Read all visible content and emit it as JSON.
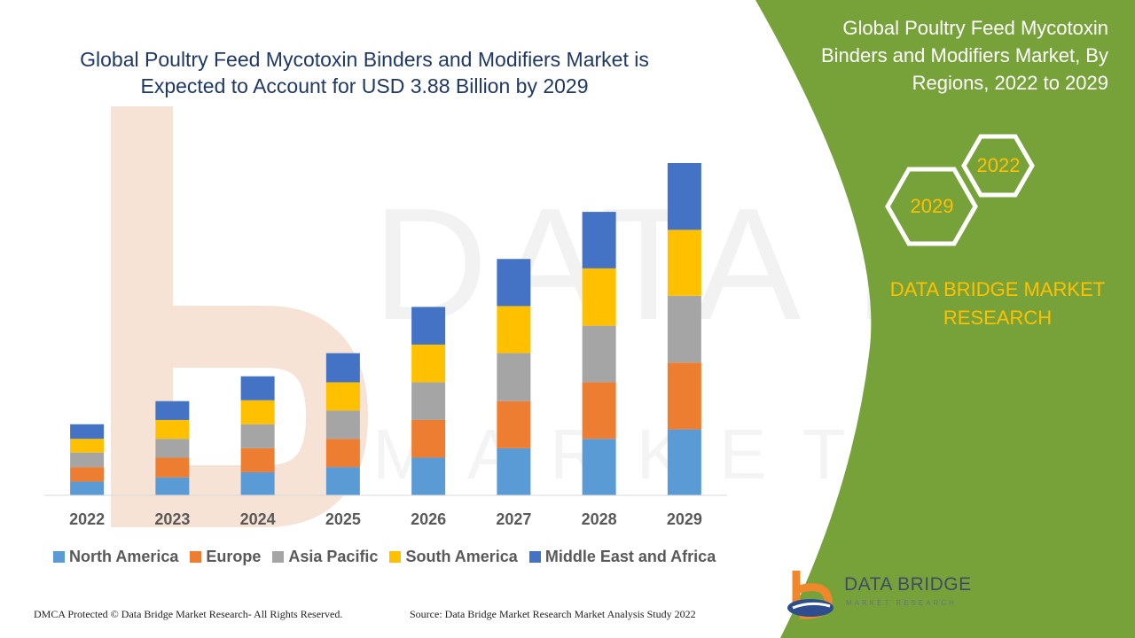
{
  "chart_data": {
    "type": "bar",
    "stacked": true,
    "title": "Global Poultry Feed Mycotoxin Binders and Modifiers Market is Expected to Account for USD 3.88 Billion by 2029",
    "categories": [
      "2022",
      "2023",
      "2024",
      "2025",
      "2026",
      "2027",
      "2028",
      "2029"
    ],
    "series": [
      {
        "name": "North America",
        "color": "#5b9bd5",
        "values": [
          0.16,
          0.21,
          0.27,
          0.33,
          0.44,
          0.55,
          0.66,
          0.77
        ]
      },
      {
        "name": "Europe",
        "color": "#ed7d31",
        "values": [
          0.17,
          0.23,
          0.28,
          0.33,
          0.44,
          0.55,
          0.66,
          0.78
        ]
      },
      {
        "name": "Asia Pacific",
        "color": "#a5a5a5",
        "values": [
          0.17,
          0.22,
          0.28,
          0.33,
          0.44,
          0.56,
          0.66,
          0.78
        ]
      },
      {
        "name": "South America",
        "color": "#ffc000",
        "values": [
          0.16,
          0.22,
          0.28,
          0.33,
          0.44,
          0.55,
          0.67,
          0.77
        ]
      },
      {
        "name": "Middle East and Africa",
        "color": "#4472c4",
        "values": [
          0.17,
          0.22,
          0.28,
          0.34,
          0.44,
          0.55,
          0.66,
          0.78
        ]
      }
    ],
    "ylim": [
      0,
      4.0
    ],
    "xlabel": "",
    "ylabel": "",
    "legend_position": "bottom",
    "grid": false
  },
  "side_panel": {
    "title": "Global Poultry Feed Mycotoxin Binders and Modifiers Market, By Regions, 2022 to 2029",
    "hex_year_a": "2022",
    "hex_year_b": "2029",
    "brand": "DATA BRIDGE MARKET RESEARCH",
    "accent_color": "#ffc000",
    "panel_color": "#77a23a"
  },
  "footer": {
    "copyright": "DMCA Protected © Data Bridge Market Research- All Rights Reserved.",
    "source": "Source: Data Bridge Market Research Market Analysis Study 2022"
  },
  "logo": {
    "name": "DATA BRIDGE",
    "tagline": "MARKET RESEARCH"
  }
}
